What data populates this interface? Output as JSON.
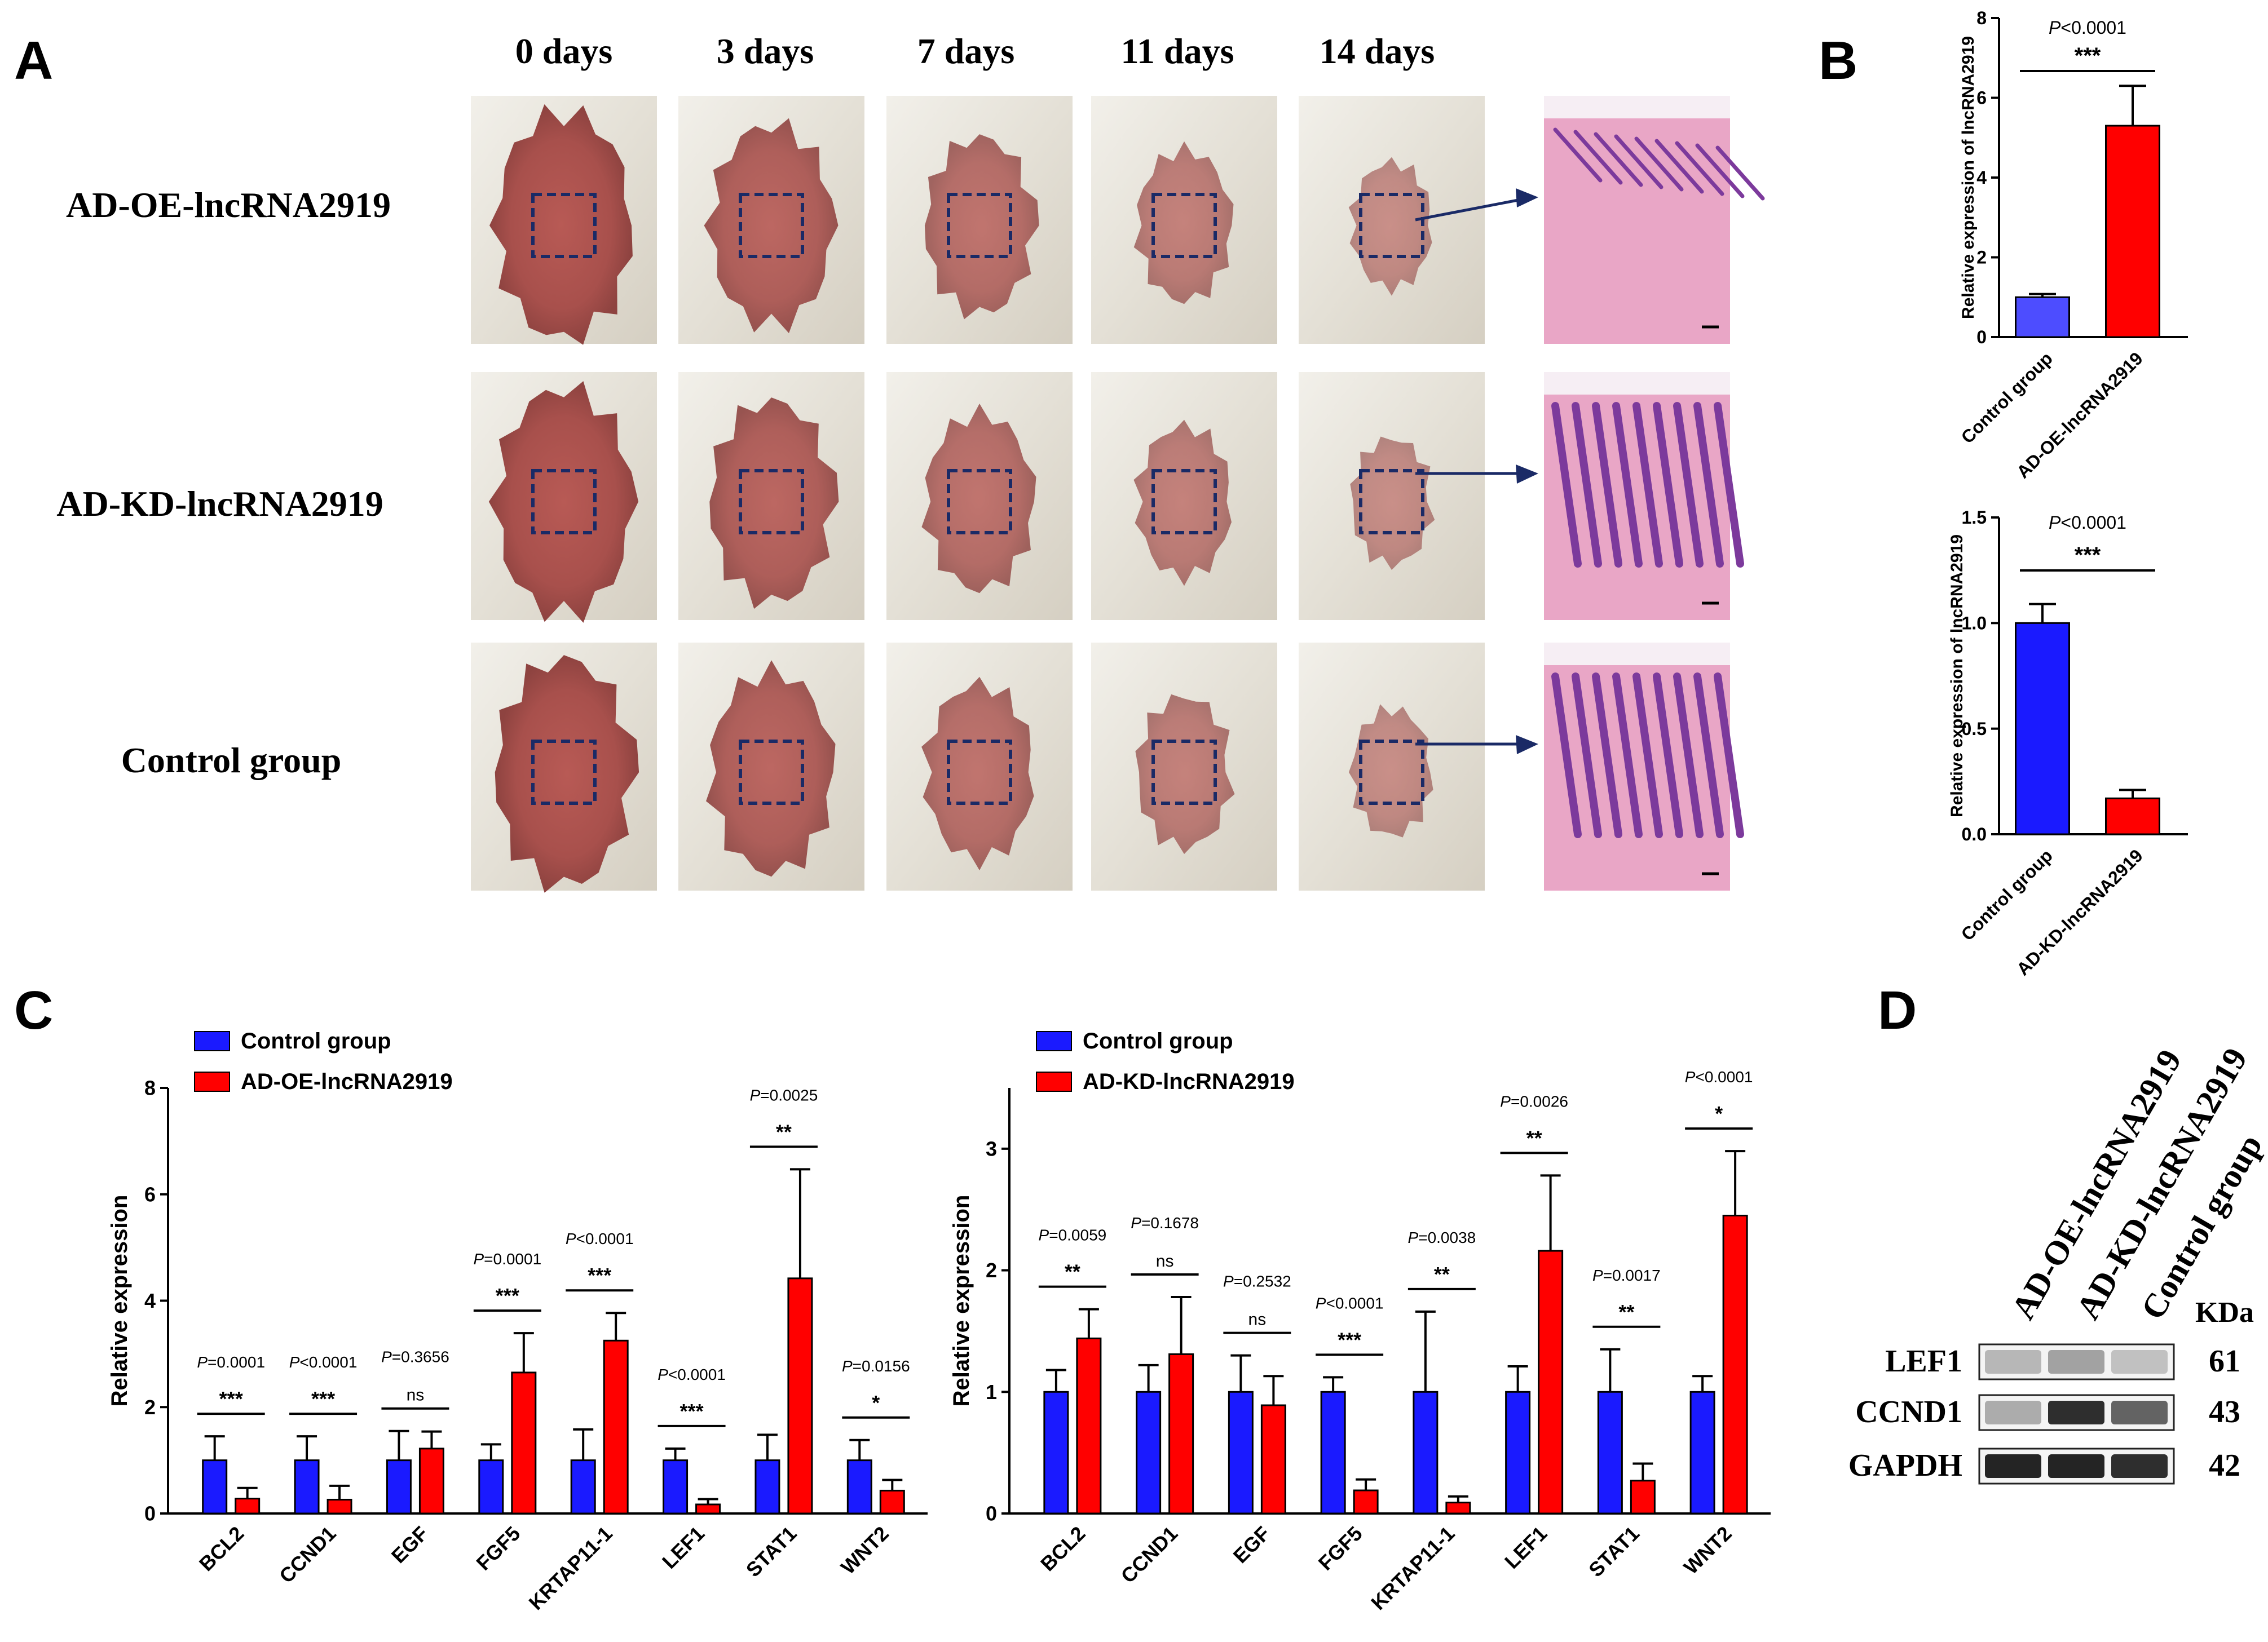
{
  "panel_labels": [
    "A",
    "B",
    "C",
    "D"
  ],
  "panel_a": {
    "day_labels": [
      "0 days",
      "3 days",
      "7 days",
      "11 days",
      "14 days"
    ],
    "row_labels": [
      "AD-OE-lncRNA2919",
      "AD-KD-lncRNA2919",
      "Control group"
    ]
  },
  "colors": {
    "control": "#1a1aff",
    "control_light": "#4d4dff",
    "treatment": "#ff0000",
    "box": "#1a2a66",
    "he_pink": "#e9a6c6",
    "he_purple": "#7c3a9c"
  },
  "chart_data": [
    {
      "id": "B-top",
      "type": "bar",
      "categories": [
        "Control group",
        "AD-OE-lncRNA2919"
      ],
      "values": [
        1.0,
        5.3
      ],
      "errors": [
        0.08,
        1.0
      ],
      "ylabel": "Relative expression of lncRNA2919",
      "ylim": [
        0,
        8
      ],
      "yticks": [
        "0",
        "2",
        "4",
        "6",
        "8"
      ],
      "pvalue": "P<0.0001",
      "stars": "***"
    },
    {
      "id": "B-bottom",
      "type": "bar",
      "categories": [
        "Control group",
        "AD-KD-lncRNA2919"
      ],
      "values": [
        1.0,
        0.17
      ],
      "errors": [
        0.09,
        0.04
      ],
      "ylabel": "Relative expression of lncRNA2919",
      "ylim": [
        0,
        1.5
      ],
      "yticks": [
        "0.0",
        "0.5",
        "1.0",
        "1.5"
      ],
      "pvalue": "P<0.0001",
      "stars": "***"
    },
    {
      "id": "C-left",
      "type": "bar",
      "categories": [
        "BCL2",
        "CCND1",
        "EGF",
        "FGF5",
        "KRTAP11-1",
        "LEF1",
        "STAT1",
        "WNT2"
      ],
      "series": [
        {
          "name": "Control group",
          "values": [
            1.0,
            1.0,
            1.0,
            1.0,
            1.0,
            1.0,
            1.0,
            1.0
          ],
          "errors": [
            0.45,
            0.45,
            0.55,
            0.3,
            0.58,
            0.22,
            0.48,
            0.38
          ]
        },
        {
          "name": "AD-OE-lncRNA2919",
          "values": [
            0.28,
            0.26,
            1.22,
            2.65,
            3.25,
            0.17,
            4.42,
            0.43
          ],
          "errors": [
            0.2,
            0.26,
            0.32,
            0.74,
            0.52,
            0.1,
            2.05,
            0.2
          ]
        }
      ],
      "pvalues": [
        "P=0.0001",
        "P<0.0001",
        "P=0.3656",
        "P=0.0001",
        "P<0.0001",
        "P<0.0001",
        "P=0.0025",
        "P=0.0156"
      ],
      "stars": [
        "***",
        "***",
        "ns",
        "***",
        "***",
        "***",
        "**",
        "*"
      ],
      "ylabel": "Relative expression",
      "ylim": [
        0,
        8
      ],
      "yticks": [
        "0",
        "2",
        "4",
        "6",
        "8"
      ]
    },
    {
      "id": "C-right",
      "type": "bar",
      "categories": [
        "BCL2",
        "CCND1",
        "EGF",
        "FGF5",
        "KRTAP11-1",
        "LEF1",
        "STAT1",
        "WNT2"
      ],
      "series": [
        {
          "name": "Control group",
          "values": [
            1.0,
            1.0,
            1.0,
            1.0,
            1.0,
            1.0,
            1.0,
            1.0
          ],
          "errors": [
            0.18,
            0.22,
            0.3,
            0.12,
            0.66,
            0.21,
            0.35,
            0.13
          ]
        },
        {
          "name": "AD-KD-lncRNA2919",
          "values": [
            1.44,
            1.31,
            0.89,
            0.19,
            0.09,
            2.16,
            0.27,
            2.45
          ],
          "errors": [
            0.24,
            0.47,
            0.24,
            0.09,
            0.05,
            0.62,
            0.14,
            0.53
          ]
        }
      ],
      "pvalues": [
        "P=0.0059",
        "P=0.1678",
        "P=0.2532",
        "P<0.0001",
        "P=0.0038",
        "P=0.0026",
        "P=0.0017",
        "P<0.0001"
      ],
      "stars": [
        "**",
        "ns",
        "ns",
        "***",
        "**",
        "**",
        "**",
        "*"
      ],
      "ylabel": "Relative expression",
      "ylim": [
        0,
        3.5
      ],
      "yticks": [
        "0",
        "1",
        "2",
        "3"
      ]
    }
  ],
  "panel_d": {
    "columns": [
      "AD-OE-lncRNA2919",
      "AD-KD-lncRNA2919",
      "Control group"
    ],
    "kda_header": "KDa",
    "rows": [
      {
        "label": "LEF1",
        "kda": "61",
        "intensity": [
          0.25,
          0.35,
          0.2
        ]
      },
      {
        "label": "CCND1",
        "kda": "43",
        "intensity": [
          0.3,
          0.9,
          0.65
        ]
      },
      {
        "label": "GAPDH",
        "kda": "42",
        "intensity": [
          0.95,
          0.95,
          0.9
        ]
      }
    ]
  }
}
